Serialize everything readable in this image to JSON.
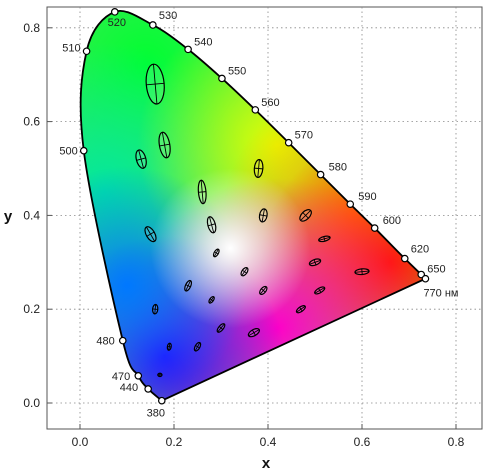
{
  "chart_data": {
    "type": "scatter",
    "title": "",
    "xlabel": "x",
    "ylabel": "y",
    "xlim": [
      -0.06,
      0.86
    ],
    "ylim": [
      -0.06,
      0.85
    ],
    "x_ticks": [
      "0.0",
      "0.2",
      "0.4",
      "0.6",
      "0.8"
    ],
    "y_ticks": [
      "0.0",
      "0.2",
      "0.4",
      "0.6",
      "0.8"
    ],
    "grid": true,
    "locus_points": [
      {
        "label": "380",
        "x": 0.174,
        "y": 0.005
      },
      {
        "label": "440",
        "x": 0.145,
        "y": 0.03
      },
      {
        "label": "470",
        "x": 0.124,
        "y": 0.058
      },
      {
        "label": "480",
        "x": 0.091,
        "y": 0.133
      },
      {
        "label": "500",
        "x": 0.008,
        "y": 0.538
      },
      {
        "label": "510",
        "x": 0.014,
        "y": 0.75
      },
      {
        "label": "520",
        "x": 0.074,
        "y": 0.834
      },
      {
        "label": "530",
        "x": 0.155,
        "y": 0.806
      },
      {
        "label": "540",
        "x": 0.23,
        "y": 0.754
      },
      {
        "label": "550",
        "x": 0.302,
        "y": 0.692
      },
      {
        "label": "560",
        "x": 0.373,
        "y": 0.625
      },
      {
        "label": "570",
        "x": 0.444,
        "y": 0.555
      },
      {
        "label": "580",
        "x": 0.512,
        "y": 0.487
      },
      {
        "label": "590",
        "x": 0.575,
        "y": 0.424
      },
      {
        "label": "600",
        "x": 0.627,
        "y": 0.373
      },
      {
        "label": "620",
        "x": 0.691,
        "y": 0.308
      },
      {
        "label": "650",
        "x": 0.726,
        "y": 0.274
      },
      {
        "label": "770 нм",
        "x": 0.735,
        "y": 0.265
      }
    ],
    "ellipses": [
      {
        "x": 0.16,
        "y": 0.68,
        "a": 0.085,
        "b": 0.038,
        "angle": 95
      },
      {
        "x": 0.18,
        "y": 0.55,
        "a": 0.055,
        "b": 0.022,
        "angle": 100
      },
      {
        "x": 0.13,
        "y": 0.52,
        "a": 0.04,
        "b": 0.02,
        "angle": 105
      },
      {
        "x": 0.26,
        "y": 0.45,
        "a": 0.05,
        "b": 0.016,
        "angle": 95
      },
      {
        "x": 0.38,
        "y": 0.5,
        "a": 0.038,
        "b": 0.018,
        "angle": 85
      },
      {
        "x": 0.15,
        "y": 0.36,
        "a": 0.035,
        "b": 0.018,
        "angle": 120
      },
      {
        "x": 0.28,
        "y": 0.38,
        "a": 0.035,
        "b": 0.016,
        "angle": 105
      },
      {
        "x": 0.39,
        "y": 0.4,
        "a": 0.028,
        "b": 0.016,
        "angle": 80
      },
      {
        "x": 0.48,
        "y": 0.4,
        "a": 0.03,
        "b": 0.017,
        "angle": 45
      },
      {
        "x": 0.52,
        "y": 0.35,
        "a": 0.025,
        "b": 0.01,
        "angle": 15
      },
      {
        "x": 0.29,
        "y": 0.32,
        "a": 0.018,
        "b": 0.009,
        "angle": 60
      },
      {
        "x": 0.35,
        "y": 0.28,
        "a": 0.02,
        "b": 0.011,
        "angle": 55
      },
      {
        "x": 0.5,
        "y": 0.3,
        "a": 0.025,
        "b": 0.012,
        "angle": 20
      },
      {
        "x": 0.6,
        "y": 0.28,
        "a": 0.03,
        "b": 0.012,
        "angle": 5
      },
      {
        "x": 0.23,
        "y": 0.25,
        "a": 0.024,
        "b": 0.011,
        "angle": 65
      },
      {
        "x": 0.28,
        "y": 0.22,
        "a": 0.016,
        "b": 0.008,
        "angle": 55
      },
      {
        "x": 0.39,
        "y": 0.24,
        "a": 0.02,
        "b": 0.011,
        "angle": 50
      },
      {
        "x": 0.47,
        "y": 0.2,
        "a": 0.022,
        "b": 0.01,
        "angle": 35
      },
      {
        "x": 0.51,
        "y": 0.24,
        "a": 0.024,
        "b": 0.01,
        "angle": 30
      },
      {
        "x": 0.16,
        "y": 0.2,
        "a": 0.02,
        "b": 0.011,
        "angle": 85
      },
      {
        "x": 0.3,
        "y": 0.16,
        "a": 0.022,
        "b": 0.01,
        "angle": 50
      },
      {
        "x": 0.37,
        "y": 0.15,
        "a": 0.026,
        "b": 0.013,
        "angle": 30
      },
      {
        "x": 0.25,
        "y": 0.12,
        "a": 0.02,
        "b": 0.01,
        "angle": 60
      },
      {
        "x": 0.19,
        "y": 0.12,
        "a": 0.015,
        "b": 0.008,
        "angle": 80
      },
      {
        "x": 0.17,
        "y": 0.06,
        "a": 0.009,
        "b": 0.007,
        "angle": 0
      }
    ]
  }
}
